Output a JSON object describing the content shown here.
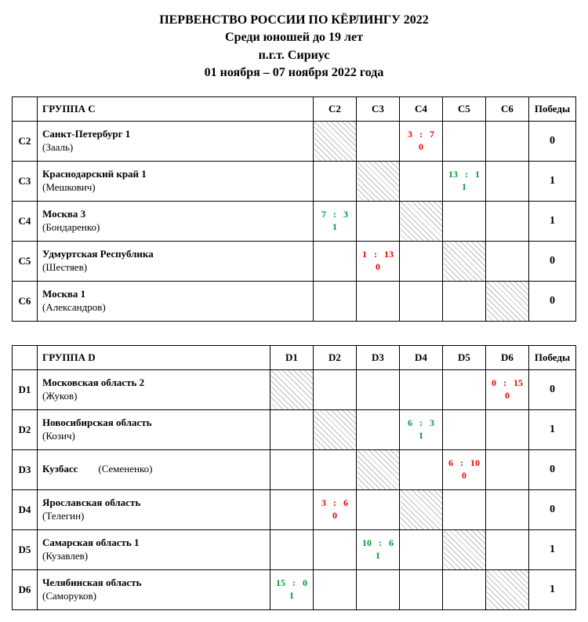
{
  "header": {
    "line1": "ПЕРВЕНСТВО РОССИИ ПО КЁРЛИНГУ 2022",
    "line2": "Среди юношей до 19 лет",
    "line3": "п.г.т. Сириус",
    "line4": "01 ноября – 07 ноября 2022 года"
  },
  "wins_label": "Победы",
  "groupC": {
    "title": "ГРУППА C",
    "columns": [
      "C2",
      "C3",
      "C4",
      "C5",
      "C6"
    ],
    "rows": [
      {
        "code": "C2",
        "team": "Санкт-Петербург 1",
        "skip": "(Зааль)",
        "wins": "0",
        "cells": {
          "C2": {
            "diag": true
          },
          "C4": {
            "a": "3",
            "b": "7",
            "r": "0",
            "cls": "loss"
          }
        }
      },
      {
        "code": "C3",
        "team": "Краснодарский край 1",
        "skip": "(Мешкович)",
        "wins": "1",
        "cells": {
          "C3": {
            "diag": true
          },
          "C5": {
            "a": "13",
            "b": "1",
            "r": "1",
            "cls": "win"
          }
        }
      },
      {
        "code": "C4",
        "team": "Москва 3",
        "skip": "(Бондаренко)",
        "wins": "1",
        "cells": {
          "C4": {
            "diag": true
          },
          "C2": {
            "a": "7",
            "b": "3",
            "r": "1",
            "cls": "win"
          }
        }
      },
      {
        "code": "C5",
        "team": "Удмуртская Республика",
        "skip": "(Шестяев)",
        "wins": "0",
        "cells": {
          "C5": {
            "diag": true
          },
          "C3": {
            "a": "1",
            "b": "13",
            "r": "0",
            "cls": "loss"
          }
        }
      },
      {
        "code": "C6",
        "team": "Москва 1",
        "skip": "(Александров)",
        "wins": "0",
        "cells": {
          "C6": {
            "diag": true
          }
        }
      }
    ]
  },
  "groupD": {
    "title": "ГРУППА D",
    "columns": [
      "D1",
      "D2",
      "D3",
      "D4",
      "D5",
      "D6"
    ],
    "rows": [
      {
        "code": "D1",
        "team": "Московская область 2",
        "skip": "(Жуков)",
        "wins": "0",
        "cells": {
          "D1": {
            "diag": true
          },
          "D6": {
            "a": "0",
            "b": "15",
            "r": "0",
            "cls": "loss"
          }
        }
      },
      {
        "code": "D2",
        "team": "Новосибирская область",
        "skip": "(Козич)",
        "wins": "1",
        "cells": {
          "D2": {
            "diag": true
          },
          "D4": {
            "a": "6",
            "b": "3",
            "r": "1",
            "cls": "win"
          }
        }
      },
      {
        "code": "D3",
        "team_inline": true,
        "team": "Кузбасс",
        "skip": "(Семененко)",
        "wins": "0",
        "cells": {
          "D3": {
            "diag": true
          },
          "D5": {
            "a": "6",
            "b": "10",
            "r": "0",
            "cls": "loss"
          }
        }
      },
      {
        "code": "D4",
        "team": "Ярославская область",
        "skip": "(Телегин)",
        "wins": "0",
        "cells": {
          "D4": {
            "diag": true
          },
          "D2": {
            "a": "3",
            "b": "6",
            "r": "0",
            "cls": "loss"
          }
        }
      },
      {
        "code": "D5",
        "team": "Самарская область 1",
        "skip": "(Кузавлев)",
        "wins": "1",
        "cells": {
          "D5": {
            "diag": true
          },
          "D3": {
            "a": "10",
            "b": "6",
            "r": "1",
            "cls": "win"
          }
        }
      },
      {
        "code": "D6",
        "team": "Челябинская область",
        "skip": "(Саморуков)",
        "wins": "1",
        "cells": {
          "D6": {
            "diag": true
          },
          "D1": {
            "a": "15",
            "b": "0",
            "r": "1",
            "cls": "win"
          }
        }
      }
    ]
  }
}
